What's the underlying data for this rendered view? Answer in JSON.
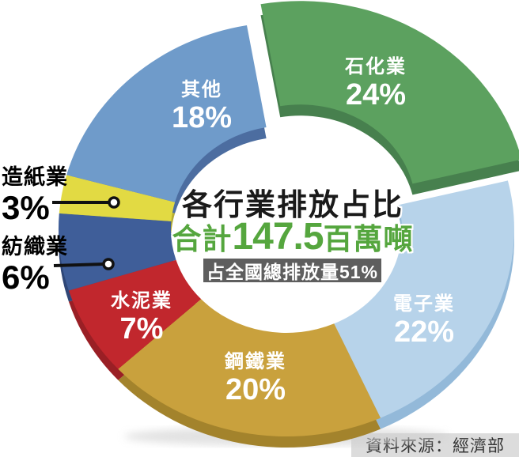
{
  "chart_data": {
    "type": "pie",
    "variant": "3d-donut-exploded",
    "title": "各行業排放占比",
    "total_label_prefix": "合計",
    "total_value": "147.5",
    "total_unit": "百萬噸",
    "badge": "占全國總排放量51%",
    "source": "資料來源：經濟部",
    "unit": "percent",
    "legend_position": "labels-on-slices",
    "slices": [
      {
        "label": "石化業",
        "value": 24,
        "pct_label": "24%",
        "color": "#5ca15f",
        "depth_color": "#47804e",
        "exploded": true
      },
      {
        "label": "電子業",
        "value": 22,
        "pct_label": "22%",
        "color": "#b7d3ea",
        "depth_color": "#93b9d9",
        "exploded": false
      },
      {
        "label": "鋼鐵業",
        "value": 20,
        "pct_label": "20%",
        "color": "#c9a13d",
        "depth_color": "#a3832c",
        "exploded": false
      },
      {
        "label": "水泥業",
        "value": 7,
        "pct_label": "7%",
        "color": "#c1272d",
        "depth_color": "#9a1f25",
        "exploded": false
      },
      {
        "label": "紡織業",
        "value": 6,
        "pct_label": "6%",
        "color": "#3f5e99",
        "depth_color": "#2f4777",
        "exploded": false
      },
      {
        "label": "造紙業",
        "value": 3,
        "pct_label": "3%",
        "color": "#e2da43",
        "depth_color": "#b5ad33",
        "exploded": false
      },
      {
        "label": "其他",
        "value": 18,
        "pct_label": "18%",
        "color": "#6f9bca",
        "depth_color": "#4c6da0",
        "exploded": false
      }
    ],
    "colors": {
      "title_text": "#1a1a1a",
      "total_text": "#55a63e",
      "badge_bg": "#5e5e5e",
      "badge_text": "#ffffff",
      "source_bg": "#dcdcdc",
      "source_text": "#333333",
      "callout_line": "#111111"
    }
  }
}
